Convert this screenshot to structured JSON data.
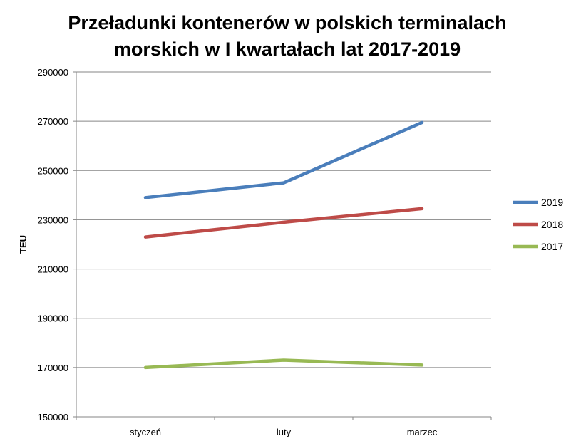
{
  "chart_data": {
    "type": "line",
    "title_lines": [
      "Przeładunki kontenerów w polskich terminalach",
      "morskich w I kwartałach lat 2017-2019"
    ],
    "xlabel": "",
    "ylabel": "TEU",
    "categories": [
      "styczeń",
      "luty",
      "marzec"
    ],
    "ylim": [
      150000,
      290000
    ],
    "yticks": [
      "150000",
      "170000",
      "190000",
      "210000",
      "230000",
      "250000",
      "270000",
      "290000"
    ],
    "grid": true,
    "legend_position": "right",
    "series": [
      {
        "name": "2019",
        "color": "#4a7ebb",
        "values": [
          239000,
          245000,
          269500
        ]
      },
      {
        "name": "2018",
        "color": "#be4b48",
        "values": [
          223000,
          229000,
          234500
        ]
      },
      {
        "name": "2017",
        "color": "#98b954",
        "values": [
          170000,
          173000,
          171000
        ]
      }
    ]
  }
}
